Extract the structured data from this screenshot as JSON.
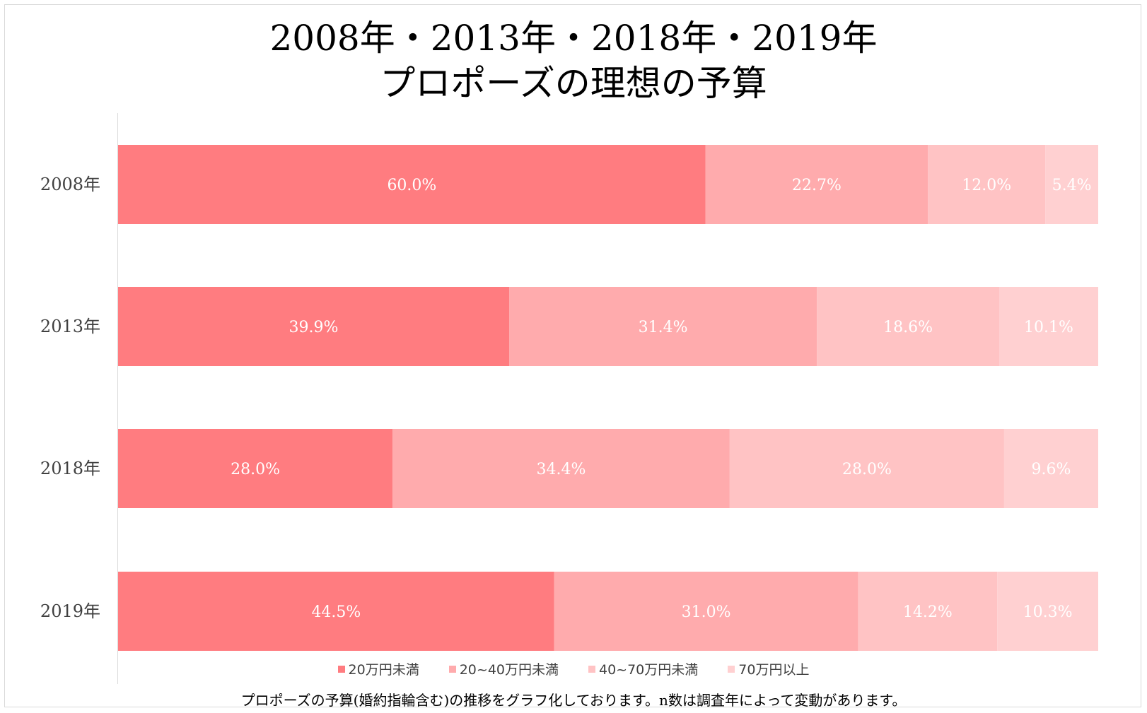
{
  "title_line1": "2008年・2013年・2018年・2019年",
  "title_line2": "プロポーズの理想の予算",
  "note": "プロポーズの予算(婚約指輪含む)の推移をグラフ化しております。n数は調査年によって変動があります。",
  "chart_data": {
    "type": "bar",
    "orientation": "horizontal",
    "stacked": "100%",
    "categories": [
      "2008年",
      "2013年",
      "2018年",
      "2019年"
    ],
    "series": [
      {
        "name": "20万円未満",
        "values": [
          60.0,
          39.9,
          28.0,
          44.5
        ],
        "labels": [
          "60.0%",
          "39.9%",
          "28.0%",
          "44.5%"
        ],
        "color": "#ff7c80"
      },
      {
        "name": "20~40万円未満",
        "values": [
          22.7,
          31.4,
          34.4,
          31.0
        ],
        "labels": [
          "22.7%",
          "31.4%",
          "34.4%",
          "31.0%"
        ],
        "color": "#ffabad"
      },
      {
        "name": "40~70万円未満",
        "values": [
          12.0,
          18.6,
          28.0,
          14.2
        ],
        "labels": [
          "12.0%",
          "18.6%",
          "28.0%",
          "14.2%"
        ],
        "color": "#ffc3c4"
      },
      {
        "name": "70万円以上",
        "values": [
          5.4,
          10.1,
          9.6,
          10.3
        ],
        "labels": [
          "5.4%",
          "10.1%",
          "9.6%",
          "10.3%"
        ],
        "color": "#ffd0d1"
      }
    ],
    "legend_position": "bottom",
    "grid": false
  }
}
